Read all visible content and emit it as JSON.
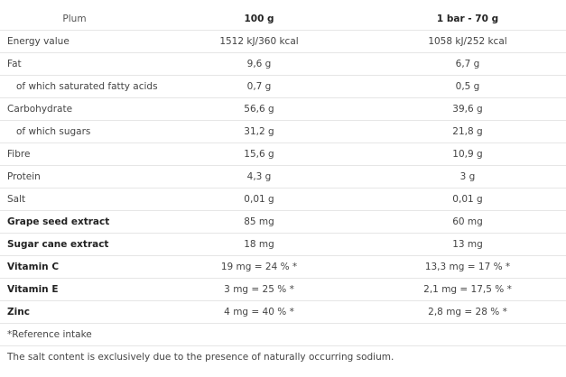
{
  "header": {
    "label": "Plum",
    "col1": "100 g",
    "col2": "1 bar - 70 g"
  },
  "rows": [
    {
      "label": "Energy value",
      "v1": "1512 kJ/360 kcal",
      "v2": "1058 kJ/252 kcal",
      "indent": false,
      "bold": false
    },
    {
      "label": "Fat",
      "v1": "9,6 g",
      "v2": "6,7 g",
      "indent": false,
      "bold": false
    },
    {
      "label": "of which saturated fatty acids",
      "v1": "0,7 g",
      "v2": "0,5 g",
      "indent": true,
      "bold": false
    },
    {
      "label": "Carbohydrate",
      "v1": "56,6 g",
      "v2": "39,6 g",
      "indent": false,
      "bold": false
    },
    {
      "label": "of which sugars",
      "v1": "31,2 g",
      "v2": "21,8 g",
      "indent": true,
      "bold": false
    },
    {
      "label": "Fibre",
      "v1": "15,6 g",
      "v2": "10,9 g",
      "indent": false,
      "bold": false
    },
    {
      "label": "Protein",
      "v1": "4,3 g",
      "v2": "3 g",
      "indent": false,
      "bold": false
    },
    {
      "label": "Salt",
      "v1": "0,01 g",
      "v2": "0,01 g",
      "indent": false,
      "bold": false
    },
    {
      "label": "Grape seed extract",
      "v1": "85 mg",
      "v2": "60 mg",
      "indent": false,
      "bold": true
    },
    {
      "label": "Sugar cane extract",
      "v1": "18 mg",
      "v2": "13 mg",
      "indent": false,
      "bold": true
    },
    {
      "label": "Vitamin C",
      "v1": "19 mg = 24 % *",
      "v2": "13,3 mg = 17 % *",
      "indent": false,
      "bold": true
    },
    {
      "label": "Vitamin E",
      "v1": "3 mg = 25 % *",
      "v2": "2,1 mg = 17,5 % *",
      "indent": false,
      "bold": true
    },
    {
      "label": "Zinc",
      "v1": "4 mg = 40 % *",
      "v2": "2,8 mg = 28 % *",
      "indent": false,
      "bold": true
    }
  ],
  "notes": [
    "*Reference intake",
    "The salt content is exclusively due to the presence of naturally occurring sodium."
  ]
}
